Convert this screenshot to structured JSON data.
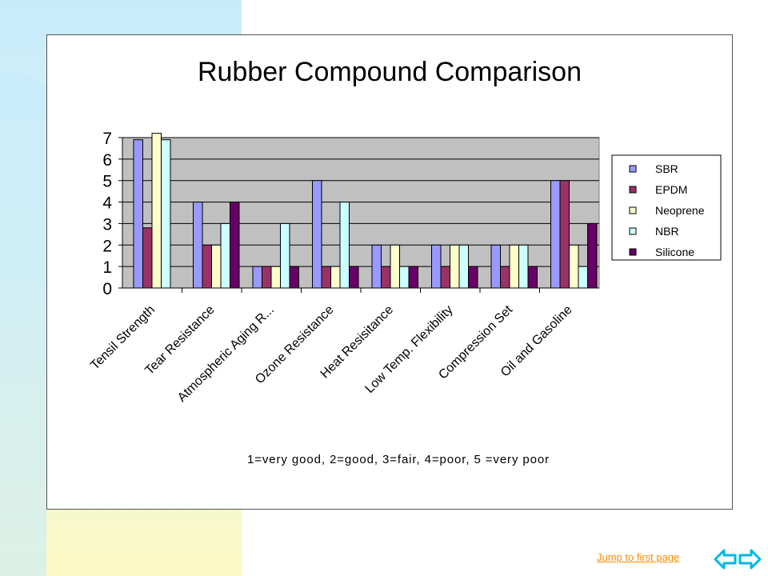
{
  "slide": {
    "jump_link": "Jump to first page",
    "nav_prev_icon": "arrow-left-icon",
    "nav_next_icon": "arrow-right-icon",
    "nav_color": "#00b7e8",
    "link_color": "#ff8a00"
  },
  "chart_data": {
    "type": "bar",
    "title": "Rubber Compound Comparison",
    "note": "1=very good, 2=good, 3=fair, 4=poor, 5 =very poor",
    "categories": [
      "Tensil Strength",
      "Tear Resistance",
      "Atmospheric Aging R...",
      "Ozone Resistance",
      "Heat Resisitance",
      "Low Temp. Flexibility",
      "Compression Set",
      "Oil and Gasoline"
    ],
    "series": [
      {
        "name": "SBR",
        "color": "#9999ff",
        "values": [
          6.9,
          4,
          1,
          5,
          2,
          2,
          2,
          5
        ]
      },
      {
        "name": "EPDM",
        "color": "#993366",
        "values": [
          2.8,
          2,
          1,
          1,
          1,
          1,
          1,
          5
        ]
      },
      {
        "name": "Neoprene",
        "color": "#ffffcc",
        "values": [
          7.2,
          2,
          1,
          1,
          2,
          2,
          2,
          2
        ]
      },
      {
        "name": "NBR",
        "color": "#ccffff",
        "values": [
          6.9,
          3,
          3,
          4,
          1,
          2,
          2,
          1
        ]
      },
      {
        "name": "Silicone",
        "color": "#660066",
        "values": [
          0,
          4,
          1,
          1,
          1,
          1,
          1,
          3
        ]
      }
    ],
    "ylim": [
      0,
      7
    ],
    "yticks": [
      0,
      1,
      2,
      3,
      4,
      5,
      6,
      7
    ],
    "grid": true,
    "plot_background": "#c0c0c0",
    "legend_position": "right"
  }
}
